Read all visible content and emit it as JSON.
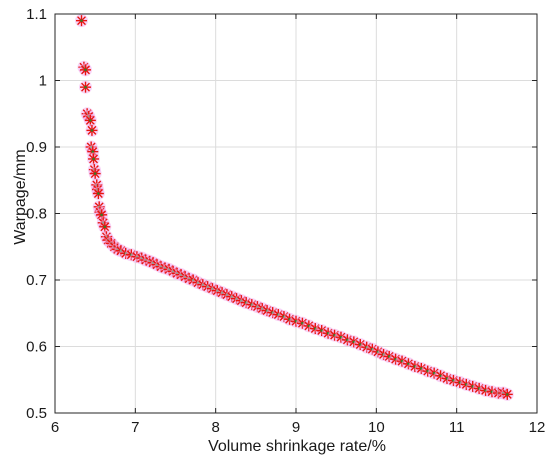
{
  "chart_data": {
    "type": "scatter",
    "title": "",
    "xlabel": "Volume shrinkage rate/%",
    "ylabel": "Warpage/mm",
    "xlim": [
      6,
      12
    ],
    "ylim": [
      0.5,
      1.1
    ],
    "xticks": [
      "6",
      "7",
      "8",
      "9",
      "10",
      "11",
      "12"
    ],
    "yticks": [
      "0.5",
      "0.6",
      "0.7",
      "0.8",
      "0.9",
      "1",
      "1.1"
    ],
    "grid": true,
    "marker": "asterisk",
    "marker_color": "#e8140f",
    "marker_center_color": "#3a7a2a",
    "halo_color": "#f3b3f0",
    "series": [
      {
        "points": [
          [
            6.33,
            1.09
          ],
          [
            6.36,
            1.02
          ],
          [
            6.38,
            1.016
          ],
          [
            6.38,
            0.99
          ],
          [
            6.4,
            0.95
          ],
          [
            6.42,
            0.946
          ],
          [
            6.44,
            0.94
          ],
          [
            6.46,
            0.925
          ],
          [
            6.45,
            0.9
          ],
          [
            6.47,
            0.893
          ],
          [
            6.48,
            0.882
          ],
          [
            6.49,
            0.866
          ],
          [
            6.5,
            0.86
          ],
          [
            6.52,
            0.843
          ],
          [
            6.53,
            0.836
          ],
          [
            6.54,
            0.83
          ],
          [
            6.55,
            0.81
          ],
          [
            6.56,
            0.802
          ],
          [
            6.58,
            0.798
          ],
          [
            6.6,
            0.786
          ],
          [
            6.62,
            0.78
          ],
          [
            6.64,
            0.765
          ],
          [
            6.66,
            0.76
          ],
          [
            6.7,
            0.755
          ],
          [
            6.74,
            0.75
          ],
          [
            6.78,
            0.746
          ],
          [
            6.82,
            0.744
          ],
          [
            6.88,
            0.74
          ],
          [
            6.95,
            0.738
          ],
          [
            7.02,
            0.735
          ],
          [
            7.08,
            0.733
          ],
          [
            7.13,
            0.73
          ],
          [
            7.18,
            0.728
          ],
          [
            7.22,
            0.726
          ],
          [
            7.27,
            0.723
          ],
          [
            7.32,
            0.72
          ],
          [
            7.37,
            0.718
          ],
          [
            7.42,
            0.716
          ],
          [
            7.47,
            0.713
          ],
          [
            7.52,
            0.71
          ],
          [
            7.57,
            0.708
          ],
          [
            7.62,
            0.705
          ],
          [
            7.67,
            0.702
          ],
          [
            7.72,
            0.7
          ],
          [
            7.78,
            0.696
          ],
          [
            7.84,
            0.693
          ],
          [
            7.9,
            0.69
          ],
          [
            7.96,
            0.687
          ],
          [
            8.02,
            0.684
          ],
          [
            8.08,
            0.681
          ],
          [
            8.14,
            0.678
          ],
          [
            8.2,
            0.675
          ],
          [
            8.26,
            0.672
          ],
          [
            8.32,
            0.669
          ],
          [
            8.38,
            0.666
          ],
          [
            8.45,
            0.663
          ],
          [
            8.52,
            0.66
          ],
          [
            8.58,
            0.657
          ],
          [
            8.64,
            0.654
          ],
          [
            8.71,
            0.651
          ],
          [
            8.78,
            0.648
          ],
          [
            8.85,
            0.645
          ],
          [
            8.92,
            0.641
          ],
          [
            9.0,
            0.638
          ],
          [
            9.08,
            0.635
          ],
          [
            9.16,
            0.631
          ],
          [
            9.24,
            0.627
          ],
          [
            9.32,
            0.624
          ],
          [
            9.4,
            0.62
          ],
          [
            9.48,
            0.617
          ],
          [
            9.56,
            0.614
          ],
          [
            9.64,
            0.61
          ],
          [
            9.72,
            0.607
          ],
          [
            9.8,
            0.603
          ],
          [
            9.88,
            0.599
          ],
          [
            9.95,
            0.596
          ],
          [
            10.02,
            0.592
          ],
          [
            10.09,
            0.588
          ],
          [
            10.16,
            0.585
          ],
          [
            10.24,
            0.581
          ],
          [
            10.32,
            0.578
          ],
          [
            10.4,
            0.574
          ],
          [
            10.48,
            0.57
          ],
          [
            10.56,
            0.567
          ],
          [
            10.64,
            0.563
          ],
          [
            10.72,
            0.56
          ],
          [
            10.8,
            0.556
          ],
          [
            10.88,
            0.552
          ],
          [
            10.96,
            0.549
          ],
          [
            11.04,
            0.546
          ],
          [
            11.12,
            0.543
          ],
          [
            11.2,
            0.54
          ],
          [
            11.28,
            0.537
          ],
          [
            11.36,
            0.534
          ],
          [
            11.44,
            0.532
          ],
          [
            11.52,
            0.53
          ],
          [
            11.58,
            0.53
          ],
          [
            11.63,
            0.528
          ]
        ]
      }
    ]
  }
}
